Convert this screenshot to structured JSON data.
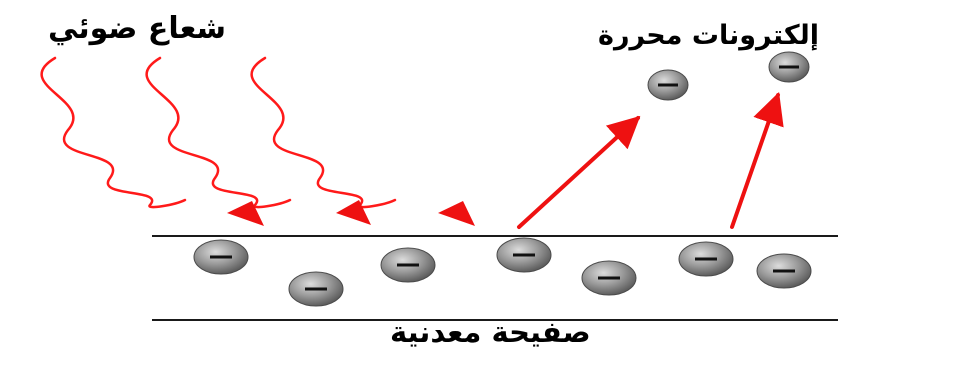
{
  "labels": {
    "light_ray": "شعاع ضوئي",
    "free_electrons": "إلكترونات محررة",
    "metal_plate": "صفيحة معدنية"
  },
  "colors": {
    "ray": "#ff1a1a",
    "arrow": "#ee1111",
    "plate_line": "#1a1a1a",
    "electron_fill": "#8a8a8a",
    "electron_highlight": "#d0d0d0",
    "electron_sign": "#111111"
  },
  "electron_symbol": "minus-sign"
}
